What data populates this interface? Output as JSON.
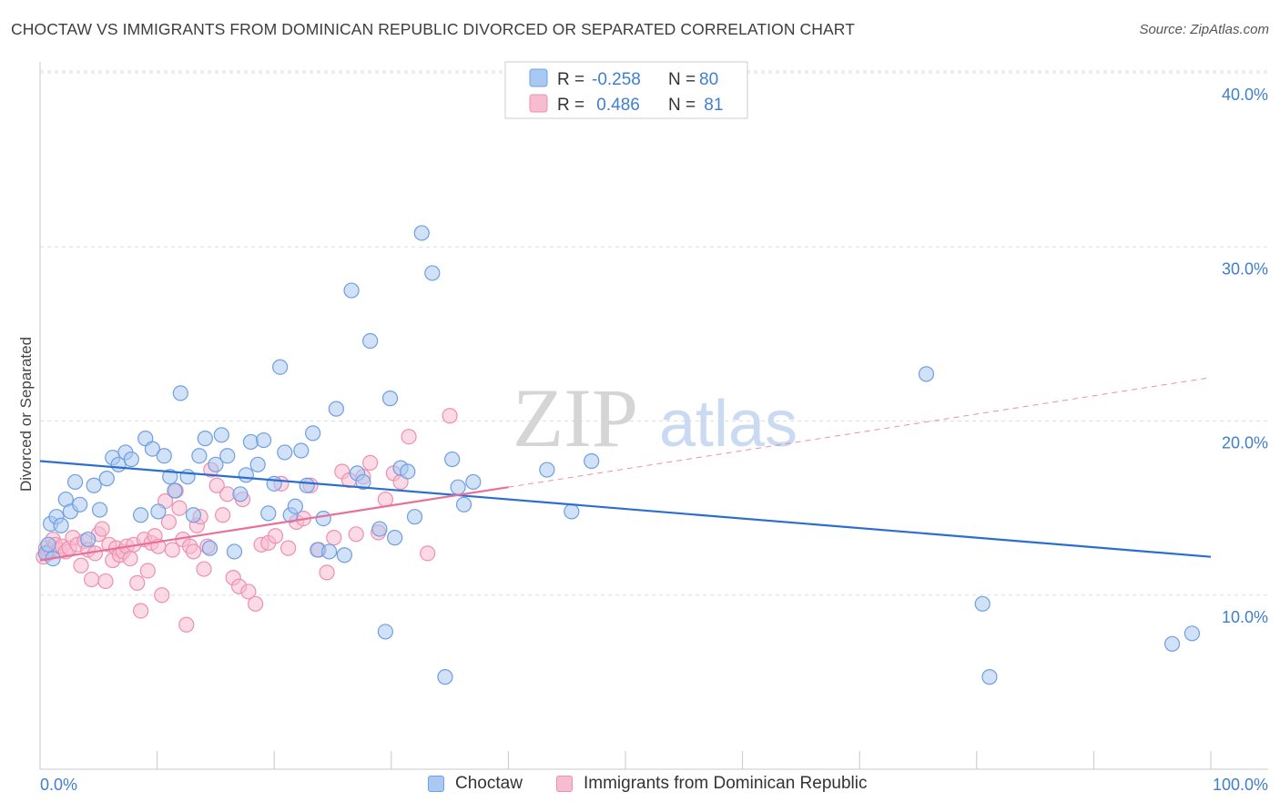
{
  "header": {
    "title": "CHOCTAW VS IMMIGRANTS FROM DOMINICAN REPUBLIC DIVORCED OR SEPARATED CORRELATION CHART",
    "source": "Source: ZipAtlas.com"
  },
  "watermark": {
    "zip": "ZIP",
    "atlas": "atlas"
  },
  "legend": {
    "rows": [
      {
        "r_label": "R = ",
        "r_value": "-0.258",
        "n_label": "N = ",
        "n_value": "80"
      },
      {
        "r_label": "R = ",
        "r_value": " 0.486",
        "n_label": "N = ",
        "n_value": " 81"
      }
    ]
  },
  "bottom_legend": {
    "items": [
      {
        "label": "Choctaw"
      },
      {
        "label": "Immigrants from Dominican Republic"
      }
    ]
  },
  "axes": {
    "x_min_label": "0.0%",
    "x_max_label": "100.0%"
  },
  "colors": {
    "choctaw_fill": "#aac9f2",
    "choctaw_stroke": "#6f9fe0",
    "choctaw_line": "#2a6fd0",
    "dominican_fill": "#f7bcd0",
    "dominican_stroke": "#ee8fb0",
    "dominican_line": "#e8709a",
    "grid": "#dddddd",
    "axis_text": "#3f7fcf"
  },
  "chart_data": {
    "type": "scatter",
    "title": "CHOCTAW VS IMMIGRANTS FROM DOMINICAN REPUBLIC DIVORCED OR SEPARATED CORRELATION CHART",
    "xlabel": "",
    "ylabel": "Divorced or Separated",
    "xlim": [
      0,
      100
    ],
    "ylim": [
      0,
      40
    ],
    "y_ticks": [
      {
        "value": 10,
        "label": "10.0%"
      },
      {
        "value": 20,
        "label": "20.0%"
      },
      {
        "value": 30,
        "label": "30.0%"
      },
      {
        "value": 40,
        "label": "40.0%"
      }
    ],
    "grid": "horizontal dashed",
    "legend_position": "top-center",
    "series": [
      {
        "name": "Choctaw",
        "R": -0.258,
        "N": 80,
        "trend": {
          "x": [
            0,
            100
          ],
          "y": [
            17.7,
            12.2
          ]
        },
        "points": [
          [
            0.5,
            12.4
          ],
          [
            0.7,
            12.9
          ],
          [
            0.9,
            14.1
          ],
          [
            1.1,
            12.1
          ],
          [
            1.4,
            14.5
          ],
          [
            1.8,
            14.0
          ],
          [
            2.2,
            15.5
          ],
          [
            2.6,
            14.8
          ],
          [
            3.0,
            16.5
          ],
          [
            3.4,
            15.2
          ],
          [
            4.1,
            13.2
          ],
          [
            4.6,
            16.3
          ],
          [
            5.1,
            14.9
          ],
          [
            5.7,
            16.7
          ],
          [
            6.2,
            17.9
          ],
          [
            6.7,
            17.5
          ],
          [
            7.3,
            18.2
          ],
          [
            7.8,
            17.8
          ],
          [
            8.6,
            14.6
          ],
          [
            9.0,
            19.0
          ],
          [
            9.6,
            18.4
          ],
          [
            10.1,
            14.8
          ],
          [
            10.6,
            18.0
          ],
          [
            11.1,
            16.8
          ],
          [
            11.5,
            16.0
          ],
          [
            12.0,
            21.6
          ],
          [
            12.6,
            16.8
          ],
          [
            13.1,
            14.6
          ],
          [
            13.6,
            18.0
          ],
          [
            14.1,
            19.0
          ],
          [
            14.5,
            12.7
          ],
          [
            15.0,
            17.5
          ],
          [
            15.5,
            19.2
          ],
          [
            16.0,
            18.0
          ],
          [
            16.6,
            12.5
          ],
          [
            17.1,
            15.8
          ],
          [
            17.6,
            16.9
          ],
          [
            18.0,
            18.8
          ],
          [
            18.6,
            17.5
          ],
          [
            19.1,
            18.9
          ],
          [
            19.5,
            14.7
          ],
          [
            20.0,
            16.4
          ],
          [
            20.5,
            23.1
          ],
          [
            20.9,
            18.2
          ],
          [
            21.4,
            14.6
          ],
          [
            21.8,
            15.1
          ],
          [
            22.3,
            18.3
          ],
          [
            22.8,
            16.3
          ],
          [
            23.3,
            19.3
          ],
          [
            23.7,
            12.6
          ],
          [
            24.2,
            14.4
          ],
          [
            24.7,
            12.5
          ],
          [
            25.3,
            20.7
          ],
          [
            26.0,
            12.3
          ],
          [
            26.6,
            27.5
          ],
          [
            27.1,
            17.0
          ],
          [
            27.6,
            16.5
          ],
          [
            28.2,
            24.6
          ],
          [
            29.0,
            13.8
          ],
          [
            29.5,
            7.9
          ],
          [
            29.9,
            21.3
          ],
          [
            30.3,
            13.3
          ],
          [
            30.8,
            17.3
          ],
          [
            31.4,
            17.1
          ],
          [
            32.0,
            14.5
          ],
          [
            32.6,
            30.8
          ],
          [
            33.5,
            28.5
          ],
          [
            34.6,
            5.3
          ],
          [
            35.2,
            17.8
          ],
          [
            35.7,
            16.2
          ],
          [
            36.2,
            15.2
          ],
          [
            37.0,
            16.5
          ],
          [
            43.3,
            17.2
          ],
          [
            45.4,
            14.8
          ],
          [
            47.1,
            17.7
          ],
          [
            75.7,
            22.7
          ],
          [
            80.5,
            9.5
          ],
          [
            81.1,
            5.3
          ],
          [
            96.7,
            7.2
          ],
          [
            98.4,
            7.8
          ]
        ]
      },
      {
        "name": "Immigrants from Dominican Republic",
        "R": 0.486,
        "N": 81,
        "trend": {
          "x": [
            0,
            40
          ],
          "y": [
            12.0,
            16.2
          ]
        },
        "trend_dashed": {
          "x": [
            40,
            100
          ],
          "y": [
            16.2,
            22.5
          ]
        },
        "points": [
          [
            0.3,
            12.2
          ],
          [
            0.5,
            12.7
          ],
          [
            0.7,
            12.4
          ],
          [
            0.9,
            12.6
          ],
          [
            1.1,
            13.2
          ],
          [
            1.3,
            12.9
          ],
          [
            1.6,
            12.6
          ],
          [
            1.9,
            12.8
          ],
          [
            2.2,
            12.5
          ],
          [
            2.5,
            12.7
          ],
          [
            2.8,
            13.3
          ],
          [
            3.2,
            12.9
          ],
          [
            3.5,
            11.7
          ],
          [
            3.8,
            13.1
          ],
          [
            4.1,
            12.6
          ],
          [
            4.4,
            10.9
          ],
          [
            4.7,
            12.4
          ],
          [
            5.0,
            13.5
          ],
          [
            5.3,
            13.8
          ],
          [
            5.6,
            10.8
          ],
          [
            5.9,
            12.9
          ],
          [
            6.2,
            12.0
          ],
          [
            6.5,
            12.7
          ],
          [
            6.8,
            12.3
          ],
          [
            7.1,
            12.5
          ],
          [
            7.4,
            12.8
          ],
          [
            7.7,
            12.1
          ],
          [
            8.0,
            12.9
          ],
          [
            8.3,
            10.7
          ],
          [
            8.6,
            9.1
          ],
          [
            8.9,
            13.2
          ],
          [
            9.2,
            11.4
          ],
          [
            9.5,
            13.0
          ],
          [
            9.8,
            13.4
          ],
          [
            10.1,
            12.8
          ],
          [
            10.4,
            10.0
          ],
          [
            10.7,
            15.4
          ],
          [
            11.0,
            14.2
          ],
          [
            11.3,
            12.6
          ],
          [
            11.6,
            16.0
          ],
          [
            11.9,
            15.0
          ],
          [
            12.2,
            13.2
          ],
          [
            12.5,
            8.3
          ],
          [
            12.8,
            12.8
          ],
          [
            13.1,
            12.5
          ],
          [
            13.4,
            14.0
          ],
          [
            13.7,
            14.5
          ],
          [
            14.0,
            11.5
          ],
          [
            14.3,
            12.8
          ],
          [
            14.6,
            17.2
          ],
          [
            15.1,
            16.3
          ],
          [
            15.6,
            14.6
          ],
          [
            16.0,
            15.8
          ],
          [
            16.5,
            11.0
          ],
          [
            17.0,
            10.5
          ],
          [
            17.3,
            15.5
          ],
          [
            17.8,
            10.2
          ],
          [
            18.4,
            9.5
          ],
          [
            18.9,
            12.9
          ],
          [
            19.5,
            13.0
          ],
          [
            20.1,
            13.4
          ],
          [
            20.6,
            16.4
          ],
          [
            21.2,
            12.7
          ],
          [
            21.9,
            14.2
          ],
          [
            22.5,
            14.4
          ],
          [
            23.1,
            16.3
          ],
          [
            23.8,
            12.6
          ],
          [
            24.5,
            11.3
          ],
          [
            25.1,
            13.3
          ],
          [
            25.8,
            17.1
          ],
          [
            26.4,
            16.6
          ],
          [
            27.0,
            13.5
          ],
          [
            27.6,
            16.8
          ],
          [
            28.2,
            17.6
          ],
          [
            28.9,
            13.6
          ],
          [
            29.5,
            15.5
          ],
          [
            30.2,
            17.0
          ],
          [
            30.8,
            16.5
          ],
          [
            31.5,
            19.1
          ],
          [
            33.1,
            12.4
          ],
          [
            35.0,
            20.3
          ]
        ]
      }
    ]
  }
}
